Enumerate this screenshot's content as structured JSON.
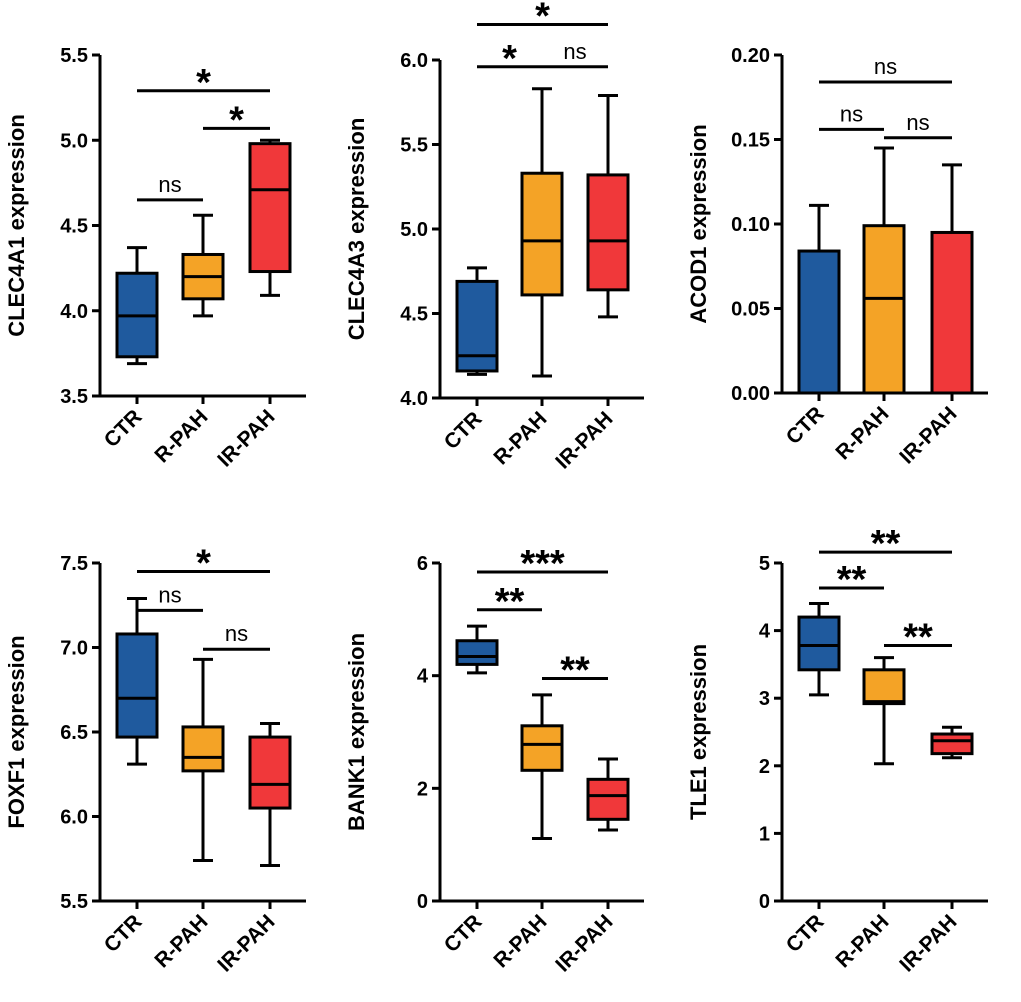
{
  "colors": {
    "CTR": "#1f5a9e",
    "R-PAH": "#f4a326",
    "IR-PAH": "#f0383a"
  },
  "chart_data": [
    {
      "type": "box",
      "ylabel": "CLEC4A1 expression",
      "ylim": [
        3.5,
        5.5
      ],
      "yticks": [
        3.5,
        4.0,
        4.5,
        5.0,
        5.5
      ],
      "ytick_labels": [
        "3.5",
        "4.0",
        "4.5",
        "5.0",
        "5.5"
      ],
      "categories": [
        "CTR",
        "R-PAH",
        "IR-PAH"
      ],
      "boxes": [
        {
          "group": "CTR",
          "min": 3.69,
          "q1": 3.73,
          "median": 3.97,
          "q3": 4.22,
          "max": 4.37
        },
        {
          "group": "R-PAH",
          "min": 3.97,
          "q1": 4.07,
          "median": 4.2,
          "q3": 4.33,
          "max": 4.56
        },
        {
          "group": "IR-PAH",
          "min": 4.09,
          "q1": 4.23,
          "median": 4.71,
          "q3": 4.98,
          "max": 5.0
        }
      ],
      "significance": [
        {
          "from": 1,
          "to": 2,
          "label": "ns",
          "y": 4.65
        },
        {
          "from": 2,
          "to": 3,
          "label": "*",
          "y": 5.07
        },
        {
          "from": 1,
          "to": 3,
          "label": "*",
          "y": 5.29
        }
      ]
    },
    {
      "type": "box",
      "ylabel": "CLEC4A3 expression",
      "ylim": [
        4.0,
        6.0
      ],
      "yticks": [
        4.0,
        4.5,
        5.0,
        5.5,
        6.0
      ],
      "ytick_labels": [
        "4.0",
        "4.5",
        "5.0",
        "5.5",
        "6.0"
      ],
      "categories": [
        "CTR",
        "R-PAH",
        "IR-PAH"
      ],
      "boxes": [
        {
          "group": "CTR",
          "min": 4.14,
          "q1": 4.16,
          "median": 4.25,
          "q3": 4.69,
          "max": 4.77
        },
        {
          "group": "R-PAH",
          "min": 4.13,
          "q1": 4.61,
          "median": 4.93,
          "q3": 5.33,
          "max": 5.83
        },
        {
          "group": "IR-PAH",
          "min": 4.48,
          "q1": 4.64,
          "median": 4.93,
          "q3": 5.32,
          "max": 5.79
        }
      ],
      "significance": [
        {
          "from": 1,
          "to": 2,
          "label": "*",
          "y": 5.96
        },
        {
          "from": 2,
          "to": 3,
          "label": "ns",
          "y": 5.96
        },
        {
          "from": 1,
          "to": 3,
          "label": "*",
          "y": 6.21
        }
      ]
    },
    {
      "type": "box",
      "ylabel": "ACOD1 expression",
      "ylim": [
        0.0,
        0.2
      ],
      "yticks": [
        0.0,
        0.05,
        0.1,
        0.15,
        0.2
      ],
      "ytick_labels": [
        "0.00",
        "0.05",
        "0.10",
        "0.15",
        "0.20"
      ],
      "categories": [
        "CTR",
        "R-PAH",
        "IR-PAH"
      ],
      "boxes": [
        {
          "group": "CTR",
          "min": 0.0,
          "q1": 0.0,
          "median": 0.0,
          "q3": 0.084,
          "max": 0.111
        },
        {
          "group": "R-PAH",
          "min": 0.0,
          "q1": 0.0,
          "median": 0.056,
          "q3": 0.099,
          "max": 0.145
        },
        {
          "group": "IR-PAH",
          "min": 0.0,
          "q1": 0.0,
          "median": 0.0,
          "q3": 0.095,
          "max": 0.135
        }
      ],
      "significance": [
        {
          "from": 1,
          "to": 2,
          "label": "ns",
          "y": 0.156
        },
        {
          "from": 2,
          "to": 3,
          "label": "ns",
          "y": 0.151
        },
        {
          "from": 1,
          "to": 3,
          "label": "ns",
          "y": 0.184
        }
      ]
    },
    {
      "type": "box",
      "ylabel": "FOXF1 expression",
      "ylim": [
        5.5,
        7.5
      ],
      "yticks": [
        5.5,
        6.0,
        6.5,
        7.0,
        7.5
      ],
      "ytick_labels": [
        "5.5",
        "6.0",
        "6.5",
        "7.0",
        "7.5"
      ],
      "categories": [
        "CTR",
        "R-PAH",
        "IR-PAH"
      ],
      "boxes": [
        {
          "group": "CTR",
          "min": 6.31,
          "q1": 6.47,
          "median": 6.7,
          "q3": 7.08,
          "max": 7.29
        },
        {
          "group": "R-PAH",
          "min": 5.74,
          "q1": 6.27,
          "median": 6.35,
          "q3": 6.53,
          "max": 6.93
        },
        {
          "group": "IR-PAH",
          "min": 5.71,
          "q1": 6.05,
          "median": 6.19,
          "q3": 6.47,
          "max": 6.55
        }
      ],
      "significance": [
        {
          "from": 1,
          "to": 2,
          "label": "ns",
          "y": 7.22
        },
        {
          "from": 2,
          "to": 3,
          "label": "ns",
          "y": 6.99
        },
        {
          "from": 1,
          "to": 3,
          "label": "*",
          "y": 7.45
        }
      ]
    },
    {
      "type": "box",
      "ylabel": "BANK1 expression",
      "ylim": [
        0,
        6
      ],
      "yticks": [
        0,
        2,
        4,
        6
      ],
      "ytick_labels": [
        "0",
        "2",
        "4",
        "6"
      ],
      "categories": [
        "CTR",
        "R-PAH",
        "IR-PAH"
      ],
      "boxes": [
        {
          "group": "CTR",
          "min": 4.05,
          "q1": 4.2,
          "median": 4.34,
          "q3": 4.62,
          "max": 4.88
        },
        {
          "group": "R-PAH",
          "min": 1.11,
          "q1": 2.32,
          "median": 2.78,
          "q3": 3.11,
          "max": 3.66
        },
        {
          "group": "IR-PAH",
          "min": 1.26,
          "q1": 1.45,
          "median": 1.87,
          "q3": 2.16,
          "max": 2.52
        }
      ],
      "significance": [
        {
          "from": 1,
          "to": 2,
          "label": "**",
          "y": 5.17
        },
        {
          "from": 2,
          "to": 3,
          "label": "**",
          "y": 3.95
        },
        {
          "from": 1,
          "to": 3,
          "label": "***",
          "y": 5.84
        }
      ]
    },
    {
      "type": "box",
      "ylabel": "TLE1 expression",
      "ylim": [
        0,
        5
      ],
      "yticks": [
        0,
        1,
        2,
        3,
        4,
        5
      ],
      "ytick_labels": [
        "0",
        "1",
        "2",
        "3",
        "4",
        "5"
      ],
      "categories": [
        "CTR",
        "R-PAH",
        "IR-PAH"
      ],
      "boxes": [
        {
          "group": "CTR",
          "min": 3.05,
          "q1": 3.42,
          "median": 3.78,
          "q3": 4.2,
          "max": 4.4
        },
        {
          "group": "R-PAH",
          "min": 2.03,
          "q1": 2.92,
          "median": 2.95,
          "q3": 3.42,
          "max": 3.6
        },
        {
          "group": "IR-PAH",
          "min": 2.12,
          "q1": 2.18,
          "median": 2.37,
          "q3": 2.47,
          "max": 2.57
        }
      ],
      "significance": [
        {
          "from": 1,
          "to": 2,
          "label": "**",
          "y": 4.63
        },
        {
          "from": 2,
          "to": 3,
          "label": "**",
          "y": 3.78
        },
        {
          "from": 1,
          "to": 3,
          "label": "**",
          "y": 5.16
        }
      ]
    }
  ]
}
